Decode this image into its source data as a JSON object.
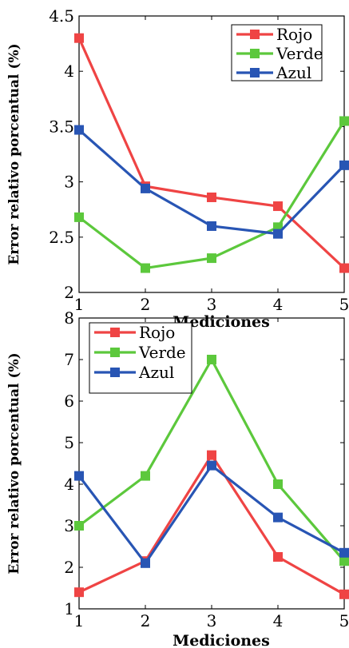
{
  "chart_data": [
    {
      "type": "line",
      "title": "",
      "xlabel": "Mediciones",
      "ylabel": "Error relativo porcentual (%)",
      "x": [
        1,
        2,
        3,
        4,
        5
      ],
      "xlim": [
        1,
        5
      ],
      "ylim": [
        2,
        4.5
      ],
      "xticks": [
        "1",
        "2",
        "3",
        "4",
        "5"
      ],
      "yticks": [
        "2",
        "2.5",
        "3",
        "3.5",
        "4",
        "4.5"
      ],
      "ytick_values": [
        2,
        2.5,
        3,
        3.5,
        4,
        4.5
      ],
      "grid": false,
      "legend_position": "top-right",
      "series": [
        {
          "name": "Rojo",
          "color": "#ef4444",
          "values": [
            4.3,
            2.96,
            2.86,
            2.78,
            2.22
          ]
        },
        {
          "name": "Verde",
          "color": "#5cc83c",
          "values": [
            2.68,
            2.22,
            2.31,
            2.59,
            3.55
          ]
        },
        {
          "name": "Azul",
          "color": "#2855b4",
          "values": [
            3.47,
            2.94,
            2.6,
            2.53,
            3.15
          ]
        }
      ]
    },
    {
      "type": "line",
      "title": "",
      "xlabel": "Mediciones",
      "ylabel": "Error relativo porcentual (%)",
      "x": [
        1,
        2,
        3,
        4,
        5
      ],
      "xlim": [
        1,
        5
      ],
      "ylim": [
        1,
        8
      ],
      "xticks": [
        "1",
        "2",
        "3",
        "4",
        "5"
      ],
      "yticks": [
        "1",
        "2",
        "3",
        "4",
        "5",
        "6",
        "7",
        "8"
      ],
      "ytick_values": [
        1,
        2,
        3,
        4,
        5,
        6,
        7,
        8
      ],
      "grid": false,
      "legend_position": "top-left",
      "series": [
        {
          "name": "Rojo",
          "color": "#ef4444",
          "values": [
            1.4,
            2.15,
            4.7,
            2.25,
            1.35
          ]
        },
        {
          "name": "Verde",
          "color": "#5cc83c",
          "values": [
            3.0,
            4.2,
            7.0,
            4.0,
            2.15
          ]
        },
        {
          "name": "Azul",
          "color": "#2855b4",
          "values": [
            4.2,
            2.1,
            4.45,
            3.2,
            2.35
          ]
        }
      ]
    }
  ]
}
